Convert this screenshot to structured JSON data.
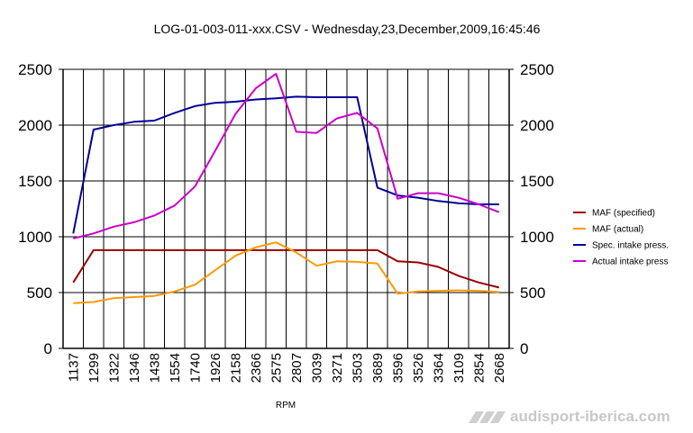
{
  "chart_data": {
    "type": "line",
    "title": "LOG-01-003-011-xxx.CSV - Wednesday,23,December,2009,16:45:46",
    "xlabel": "RPM",
    "ylabel": "",
    "ylim": [
      0,
      2500
    ],
    "yticks": [
      "0",
      "500",
      "1000",
      "1500",
      "2000",
      "2500"
    ],
    "y2ticks": [
      "0",
      "500",
      "1000",
      "1500",
      "2000",
      "2500"
    ],
    "categories": [
      "1137",
      "1299",
      "1322",
      "1346",
      "1438",
      "1554",
      "1740",
      "1926",
      "2158",
      "2366",
      "2575",
      "2807",
      "3039",
      "3271",
      "3503",
      "3689",
      "3596",
      "3526",
      "3364",
      "3109",
      "2854",
      "2668"
    ],
    "grid": true,
    "legend_position": "right",
    "series": [
      {
        "name": "MAF (specified)",
        "color": "#990000",
        "values": [
          590,
          880,
          880,
          880,
          880,
          880,
          880,
          880,
          880,
          880,
          880,
          880,
          880,
          880,
          880,
          880,
          780,
          770,
          730,
          650,
          590,
          545
        ]
      },
      {
        "name": "MAF (actual)",
        "color": "#ff9900",
        "values": [
          405,
          415,
          450,
          460,
          470,
          510,
          570,
          700,
          830,
          905,
          950,
          860,
          740,
          780,
          775,
          760,
          490,
          510,
          515,
          520,
          515,
          505
        ]
      },
      {
        "name": "Spec. intake press.",
        "color": "#000099",
        "values": [
          1030,
          1960,
          2000,
          2030,
          2040,
          2110,
          2170,
          2200,
          2210,
          2230,
          2240,
          2255,
          2250,
          2250,
          2250,
          1440,
          1370,
          1350,
          1320,
          1300,
          1290,
          1290
        ]
      },
      {
        "name": "Actual intake press",
        "color": "#cc00cc",
        "values": [
          985,
          1030,
          1090,
          1130,
          1190,
          1280,
          1450,
          1770,
          2100,
          2330,
          2460,
          1940,
          1930,
          2060,
          2110,
          1970,
          1340,
          1390,
          1390,
          1350,
          1290,
          1220
        ]
      }
    ]
  },
  "watermark": "audisport-iberica.com"
}
